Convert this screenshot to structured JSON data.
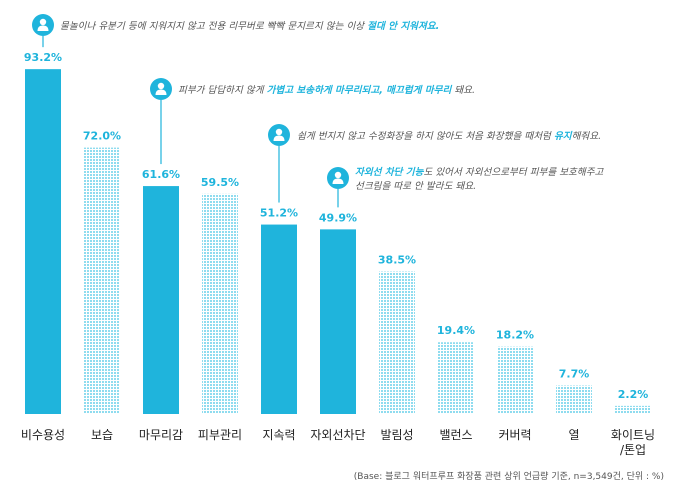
{
  "chart_data": {
    "type": "bar",
    "categories": [
      "비수용성",
      "보습",
      "마무리감",
      "피부관리",
      "지속력",
      "자외선차단",
      "발림성",
      "밸런스",
      "커버력",
      "열",
      "화이트닝\n/톤업"
    ],
    "values": [
      93.2,
      72.0,
      61.6,
      59.5,
      51.2,
      49.9,
      38.5,
      19.4,
      18.2,
      7.7,
      2.2
    ],
    "value_labels": [
      "93.2%",
      "72.0%",
      "61.6%",
      "59.5%",
      "51.2%",
      "49.9%",
      "38.5%",
      "19.4%",
      "18.2%",
      "7.7%",
      "2.2%"
    ],
    "highlighted": [
      true,
      false,
      true,
      false,
      true,
      true,
      false,
      false,
      false,
      false,
      false
    ],
    "ylim": [
      0,
      100
    ],
    "grid": false,
    "colors": {
      "highlight": "#1fb4dc",
      "pattern": "#8fdcef",
      "pattern_bg": "#ffffff",
      "text": "#222222"
    },
    "annotations": [
      {
        "bar": 0,
        "icon": "user-icon",
        "lines": [
          [
            {
              "t": "물놀이나 유분기 등에 지워지지 않고 전용 리무버로 빡빡 문지르지 않는 이상 ",
              "hl": false
            },
            {
              "t": "절대 안 지워져요.",
              "hl": true
            }
          ]
        ]
      },
      {
        "bar": 2,
        "icon": "user-icon",
        "lines": [
          [
            {
              "t": "피부가 답답하지 않게 ",
              "hl": false
            },
            {
              "t": "가볍고 보송하게 마무리되고, 매끄럽게 마무리",
              "hl": true
            },
            {
              "t": " 돼요.",
              "hl": false
            }
          ]
        ]
      },
      {
        "bar": 4,
        "icon": "user-icon",
        "lines": [
          [
            {
              "t": "쉽게 번지지 않고 수정화장을 하지 않아도 처음 화장했을 때처럼 ",
              "hl": false
            },
            {
              "t": "유지",
              "hl": true
            },
            {
              "t": "해줘요.",
              "hl": false
            }
          ]
        ]
      },
      {
        "bar": 5,
        "icon": "user-icon",
        "lines": [
          [
            {
              "t": "자외선 차단 기능",
              "hl": true
            },
            {
              "t": "도 있어서 자외선으로부터 피부를 보호해주고",
              "hl": false
            }
          ],
          [
            {
              "t": "선크림을 따로 안 발라도 돼요.",
              "hl": false
            }
          ]
        ]
      }
    ],
    "footnote": "(Base: 블로그 워터프루프 화장품 관련 상위 언급량 기준, n=3,549건, 단위 : %)"
  }
}
